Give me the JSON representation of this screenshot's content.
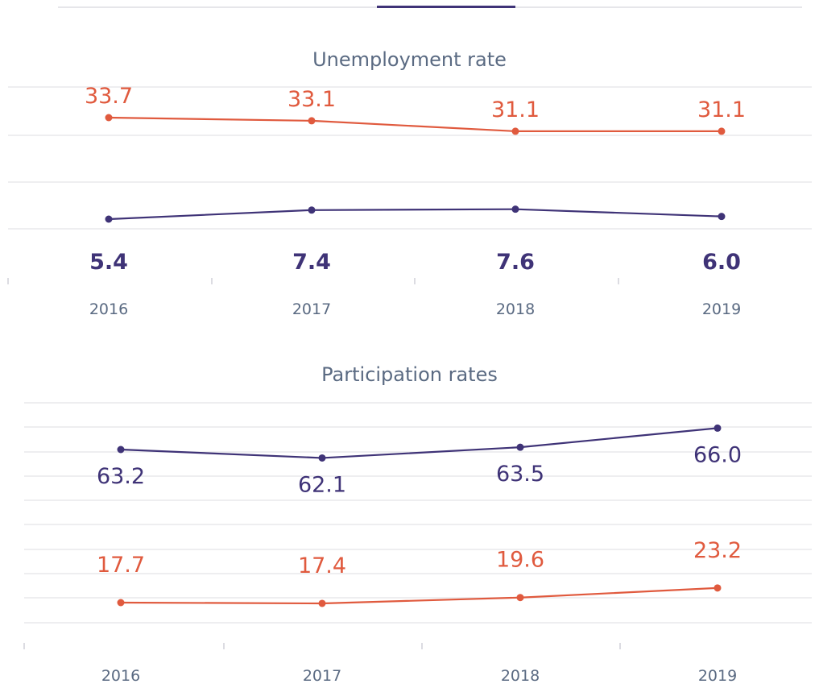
{
  "tabs": {
    "active_color": "#3f3377"
  },
  "colors": {
    "dark": "#3f3377",
    "red": "#e05a3e",
    "grid": "#e8e8ec",
    "axis_text": "#5a6a82",
    "tick": "#d0d0d8"
  },
  "chart_data": [
    {
      "type": "line",
      "title": "Unemployment rate",
      "categories": [
        "2016",
        "2017",
        "2018",
        "2019"
      ],
      "series": [
        {
          "color": "#e05a3e",
          "values": [
            33.7,
            33.1,
            31.1,
            31.1
          ],
          "labels": [
            "33.7",
            "33.1",
            "31.1",
            "31.1"
          ]
        },
        {
          "color": "#3f3377",
          "values": [
            5.4,
            7.4,
            7.6,
            6.0
          ],
          "labels": [
            "5.4",
            "7.4",
            "7.6",
            "6.0"
          ]
        }
      ],
      "grid": true
    },
    {
      "type": "line",
      "title": "Participation rates",
      "categories": [
        "2016",
        "2017",
        "2018",
        "2019"
      ],
      "series": [
        {
          "color": "#3f3377",
          "values": [
            63.2,
            62.1,
            63.5,
            66.0
          ],
          "labels": [
            "63.2",
            "62.1",
            "63.5",
            "66.0"
          ]
        },
        {
          "color": "#e05a3e",
          "values": [
            17.7,
            17.4,
            19.6,
            23.2
          ],
          "labels": [
            "17.7",
            "17.4",
            "19.6",
            "23.2"
          ]
        }
      ],
      "grid": true
    }
  ]
}
